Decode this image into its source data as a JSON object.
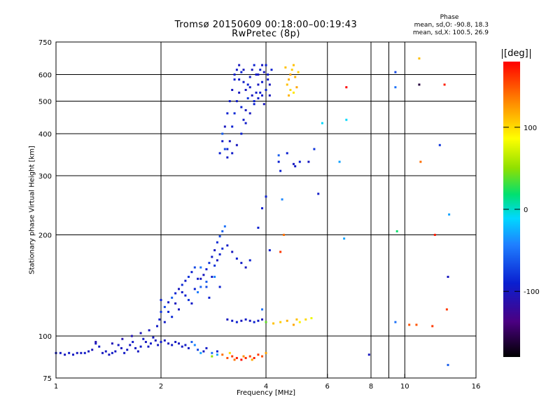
{
  "header": {
    "title": "Tromsø 20150609 00:18:00–00:19:43",
    "subtitle": "RwPretec (8p)",
    "phase_title": "Phase",
    "phase_stat_o": "mean, sd,O: -90.8, 18.3",
    "phase_stat_x": "mean, sd,X: 100.5, 26.9"
  },
  "colorbar": {
    "unit_label": "[deg]",
    "ticks": [
      {
        "value": 100,
        "label": "100"
      },
      {
        "value": 0,
        "label": "0"
      },
      {
        "value": -100,
        "label": "-100"
      }
    ],
    "range": [
      -180,
      180
    ]
  },
  "chart_data": {
    "type": "scatter",
    "xlabel": "Frequency [MHz]",
    "ylabel": "Stationary phase Virtual Height [km]",
    "xscale": "log",
    "yscale": "log",
    "xlim": [
      1,
      16
    ],
    "ylim": [
      75,
      750
    ],
    "xticks": [
      {
        "value": 1,
        "label": "1"
      },
      {
        "value": 2,
        "label": "2"
      },
      {
        "value": 4,
        "label": "4"
      },
      {
        "value": 6,
        "label": "6"
      },
      {
        "value": 8,
        "label": "8"
      },
      {
        "value": 10,
        "label": "10"
      },
      {
        "value": 16,
        "label": "16"
      }
    ],
    "xgrid": [
      2,
      4,
      6,
      8,
      9,
      10
    ],
    "yticks": [
      {
        "value": 75,
        "label": "75"
      },
      {
        "value": 100,
        "label": "100"
      },
      {
        "value": 200,
        "label": "200"
      },
      {
        "value": 300,
        "label": "300"
      },
      {
        "value": 400,
        "label": "400"
      },
      {
        "value": 500,
        "label": "500"
      },
      {
        "value": 600,
        "label": "600"
      },
      {
        "value": 750,
        "label": "750"
      }
    ],
    "ygrid": [
      100,
      200,
      300,
      400,
      500,
      600
    ],
    "grid": true,
    "color_variable": "Phase [deg]",
    "points": [
      [
        1.0,
        89,
        -95
      ],
      [
        1.03,
        89,
        -98
      ],
      [
        1.06,
        88,
        -100
      ],
      [
        1.09,
        89,
        -95
      ],
      [
        1.12,
        88,
        -97
      ],
      [
        1.15,
        89,
        -100
      ],
      [
        1.18,
        89,
        -98
      ],
      [
        1.21,
        89,
        -95
      ],
      [
        1.24,
        90,
        -100
      ],
      [
        1.27,
        91,
        -102
      ],
      [
        1.3,
        95,
        -98
      ],
      [
        1.33,
        93,
        -96
      ],
      [
        1.36,
        89,
        -99
      ],
      [
        1.39,
        90,
        -97
      ],
      [
        1.42,
        88,
        -100
      ],
      [
        1.45,
        89,
        -95
      ],
      [
        1.48,
        90,
        -97
      ],
      [
        1.51,
        94,
        -98
      ],
      [
        1.54,
        92,
        -100
      ],
      [
        1.57,
        89,
        -96
      ],
      [
        1.6,
        91,
        -98
      ],
      [
        1.63,
        94,
        -100
      ],
      [
        1.66,
        96,
        -94
      ],
      [
        1.69,
        92,
        -97
      ],
      [
        1.72,
        90,
        -99
      ],
      [
        1.75,
        93,
        -95
      ],
      [
        1.78,
        98,
        -98
      ],
      [
        1.81,
        96,
        -100
      ],
      [
        1.84,
        93,
        -97
      ],
      [
        1.87,
        95,
        -94
      ],
      [
        1.9,
        99,
        -98
      ],
      [
        1.93,
        97,
        -100
      ],
      [
        1.96,
        94,
        -97
      ],
      [
        2.0,
        96,
        -95
      ],
      [
        2.05,
        97,
        -98
      ],
      [
        2.1,
        95,
        -100
      ],
      [
        2.15,
        94,
        -96
      ],
      [
        2.2,
        96,
        -98
      ],
      [
        2.25,
        95,
        -100
      ],
      [
        2.3,
        93,
        -97
      ],
      [
        2.35,
        94,
        -95
      ],
      [
        2.4,
        92,
        -98
      ],
      [
        2.45,
        96,
        -60
      ],
      [
        2.5,
        94,
        -40
      ],
      [
        2.55,
        91,
        -70
      ],
      [
        2.6,
        89,
        -30
      ],
      [
        2.65,
        90,
        -98
      ],
      [
        2.7,
        92,
        -96
      ],
      [
        2.8,
        89,
        -50
      ],
      [
        2.9,
        90,
        -90
      ],
      [
        1.3,
        96,
        -110
      ],
      [
        1.45,
        95,
        -105
      ],
      [
        1.55,
        98,
        -110
      ],
      [
        1.65,
        100,
        -108
      ],
      [
        1.75,
        102,
        -105
      ],
      [
        1.85,
        104,
        -100
      ],
      [
        1.95,
        107,
        -95
      ],
      [
        1.98,
        112,
        -90
      ],
      [
        2.0,
        118,
        -80
      ],
      [
        2.05,
        122,
        -70
      ],
      [
        2.1,
        126,
        -95
      ],
      [
        2.15,
        130,
        -60
      ],
      [
        2.2,
        134,
        -90
      ],
      [
        2.25,
        138,
        -100
      ],
      [
        2.3,
        142,
        -85
      ],
      [
        2.35,
        146,
        -95
      ],
      [
        2.4,
        150,
        -80
      ],
      [
        2.45,
        155,
        -90
      ],
      [
        2.5,
        160,
        -70
      ],
      [
        2.55,
        148,
        -95
      ],
      [
        2.6,
        140,
        -55
      ],
      [
        2.65,
        152,
        -100
      ],
      [
        2.7,
        158,
        -90
      ],
      [
        2.75,
        165,
        -80
      ],
      [
        2.8,
        172,
        -95
      ],
      [
        2.85,
        180,
        -100
      ],
      [
        2.9,
        190,
        -85
      ],
      [
        2.95,
        198,
        -70
      ],
      [
        3.0,
        205,
        -60
      ],
      [
        3.05,
        212,
        -50
      ],
      [
        2.0,
        128,
        -90
      ],
      [
        2.1,
        118,
        -85
      ],
      [
        2.2,
        125,
        -100
      ],
      [
        2.3,
        135,
        -95
      ],
      [
        2.4,
        128,
        -80
      ],
      [
        2.5,
        138,
        -90
      ],
      [
        2.6,
        148,
        -100
      ],
      [
        2.7,
        140,
        -70
      ],
      [
        2.75,
        130,
        -90
      ],
      [
        2.8,
        150,
        -95
      ],
      [
        2.85,
        162,
        -80
      ],
      [
        2.9,
        168,
        -100
      ],
      [
        2.95,
        175,
        -90
      ],
      [
        3.0,
        182,
        -85
      ],
      [
        3.1,
        186,
        -95
      ],
      [
        3.2,
        178,
        -100
      ],
      [
        3.3,
        170,
        -90
      ],
      [
        3.4,
        165,
        -95
      ],
      [
        3.5,
        160,
        -100
      ],
      [
        3.6,
        168,
        -90
      ],
      [
        2.6,
        160,
        -50
      ],
      [
        2.7,
        145,
        -60
      ],
      [
        2.55,
        135,
        -45
      ],
      [
        2.45,
        125,
        -95
      ],
      [
        2.35,
        132,
        -90
      ],
      [
        2.25,
        120,
        -100
      ],
      [
        2.15,
        114,
        -85
      ],
      [
        2.05,
        110,
        -95
      ],
      [
        2.85,
        150,
        -40
      ],
      [
        2.95,
        140,
        -90
      ],
      [
        3.1,
        112,
        -100
      ],
      [
        3.2,
        111,
        -95
      ],
      [
        3.3,
        110,
        -90
      ],
      [
        3.4,
        111,
        -100
      ],
      [
        3.5,
        112,
        -95
      ],
      [
        3.6,
        111,
        -100
      ],
      [
        3.7,
        110,
        -90
      ],
      [
        3.8,
        111,
        -95
      ],
      [
        3.9,
        112,
        -100
      ],
      [
        4.0,
        110,
        40
      ],
      [
        4.2,
        109,
        110
      ],
      [
        4.4,
        110,
        105
      ],
      [
        4.6,
        111,
        115
      ],
      [
        4.8,
        108,
        120
      ],
      [
        4.9,
        112,
        110
      ],
      [
        5.0,
        110,
        90
      ],
      [
        5.2,
        112,
        100
      ],
      [
        5.4,
        113,
        80
      ],
      [
        3.0,
        88,
        140
      ],
      [
        3.1,
        86,
        150
      ],
      [
        3.2,
        87,
        160
      ],
      [
        3.3,
        86,
        170
      ],
      [
        3.4,
        85,
        175
      ],
      [
        3.5,
        86,
        165
      ],
      [
        3.6,
        87,
        155
      ],
      [
        3.7,
        86,
        170
      ],
      [
        3.8,
        88,
        160
      ],
      [
        3.9,
        87,
        150
      ],
      [
        4.0,
        89,
        120
      ],
      [
        3.25,
        85,
        140
      ],
      [
        3.45,
        87,
        130
      ],
      [
        3.65,
        85,
        120
      ],
      [
        2.8,
        87,
        50
      ],
      [
        2.9,
        88,
        -30
      ],
      [
        3.15,
        89,
        100
      ],
      [
        2.95,
        350,
        -90
      ],
      [
        3.0,
        380,
        -95
      ],
      [
        3.05,
        420,
        -100
      ],
      [
        3.1,
        460,
        -90
      ],
      [
        3.15,
        500,
        -95
      ],
      [
        3.2,
        540,
        -100
      ],
      [
        3.25,
        580,
        -90
      ],
      [
        3.3,
        620,
        -95
      ],
      [
        3.35,
        640,
        -100
      ],
      [
        3.4,
        610,
        -90
      ],
      [
        3.45,
        570,
        -95
      ],
      [
        3.5,
        540,
        -100
      ],
      [
        3.55,
        560,
        -90
      ],
      [
        3.6,
        590,
        -95
      ],
      [
        3.65,
        620,
        -100
      ],
      [
        3.7,
        640,
        -90
      ],
      [
        3.75,
        600,
        -95
      ],
      [
        3.8,
        560,
        -100
      ],
      [
        3.85,
        530,
        -90
      ],
      [
        3.9,
        570,
        -95
      ],
      [
        3.95,
        610,
        -100
      ],
      [
        4.0,
        640,
        -90
      ],
      [
        4.05,
        600,
        -95
      ],
      [
        4.1,
        560,
        -100
      ],
      [
        4.15,
        620,
        -90
      ],
      [
        3.0,
        400,
        -60
      ],
      [
        3.05,
        360,
        -70
      ],
      [
        3.1,
        340,
        -95
      ],
      [
        3.15,
        380,
        -100
      ],
      [
        3.2,
        420,
        -90
      ],
      [
        3.25,
        460,
        -85
      ],
      [
        3.3,
        500,
        -95
      ],
      [
        3.35,
        530,
        -100
      ],
      [
        3.4,
        480,
        -90
      ],
      [
        3.45,
        440,
        -95
      ],
      [
        3.5,
        470,
        -100
      ],
      [
        3.55,
        510,
        -80
      ],
      [
        3.6,
        550,
        -95
      ],
      [
        3.65,
        520,
        -100
      ],
      [
        3.7,
        490,
        -90
      ],
      [
        3.75,
        530,
        -95
      ],
      [
        3.8,
        600,
        -100
      ],
      [
        3.85,
        620,
        -90
      ],
      [
        3.9,
        520,
        -95
      ],
      [
        3.95,
        490,
        -100
      ],
      [
        4.0,
        540,
        -90
      ],
      [
        4.05,
        580,
        -95
      ],
      [
        4.1,
        520,
        -100
      ],
      [
        3.1,
        360,
        -90
      ],
      [
        3.2,
        350,
        -95
      ],
      [
        3.3,
        370,
        -100
      ],
      [
        3.4,
        400,
        -90
      ],
      [
        3.5,
        430,
        -95
      ],
      [
        3.6,
        460,
        -100
      ],
      [
        3.7,
        500,
        -90
      ],
      [
        3.8,
        510,
        -95
      ],
      [
        3.9,
        640,
        -100
      ],
      [
        3.25,
        600,
        -90
      ],
      [
        3.35,
        580,
        -95
      ],
      [
        3.45,
        620,
        -100
      ],
      [
        4.6,
        560,
        110
      ],
      [
        4.65,
        580,
        115
      ],
      [
        4.7,
        600,
        120
      ],
      [
        4.75,
        620,
        105
      ],
      [
        4.8,
        640,
        110
      ],
      [
        4.85,
        590,
        115
      ],
      [
        4.9,
        550,
        120
      ],
      [
        4.95,
        610,
        105
      ],
      [
        4.7,
        540,
        100
      ],
      [
        4.8,
        530,
        95
      ],
      [
        4.55,
        630,
        110
      ],
      [
        4.65,
        520,
        115
      ],
      [
        4.35,
        345,
        -60
      ],
      [
        4.35,
        330,
        -90
      ],
      [
        4.6,
        350,
        -90
      ],
      [
        4.8,
        325,
        -100
      ],
      [
        4.85,
        320,
        -95
      ],
      [
        5.0,
        330,
        -90
      ],
      [
        5.3,
        330,
        -100
      ],
      [
        5.5,
        360,
        -80
      ],
      [
        4.4,
        310,
        -90
      ],
      [
        4.4,
        178,
        160
      ],
      [
        4.5,
        200,
        140
      ],
      [
        4.0,
        260,
        -90
      ],
      [
        4.45,
        255,
        -40
      ],
      [
        3.9,
        240,
        -90
      ],
      [
        5.65,
        265,
        -95
      ],
      [
        4.1,
        180,
        -90
      ],
      [
        3.8,
        210,
        -90
      ],
      [
        3.9,
        120,
        -50
      ],
      [
        6.8,
        550,
        180
      ],
      [
        6.8,
        440,
        -10
      ],
      [
        6.7,
        195,
        -30
      ],
      [
        7.9,
        88,
        -100
      ],
      [
        9.4,
        610,
        -70
      ],
      [
        9.4,
        550,
        -50
      ],
      [
        9.4,
        110,
        -50
      ],
      [
        9.5,
        205,
        20
      ],
      [
        11.0,
        670,
        110
      ],
      [
        11.0,
        560,
        -160
      ],
      [
        11.1,
        330,
        140
      ],
      [
        12.0,
        107,
        160
      ],
      [
        12.2,
        200,
        170
      ],
      [
        12.6,
        370,
        -80
      ],
      [
        13.0,
        560,
        170
      ],
      [
        13.2,
        120,
        160
      ],
      [
        13.3,
        150,
        -100
      ],
      [
        13.4,
        230,
        -30
      ],
      [
        13.3,
        82,
        -60
      ],
      [
        10.3,
        108,
        150
      ],
      [
        10.8,
        108,
        150
      ],
      [
        5.8,
        430,
        -10
      ],
      [
        6.5,
        330,
        -30
      ]
    ]
  }
}
